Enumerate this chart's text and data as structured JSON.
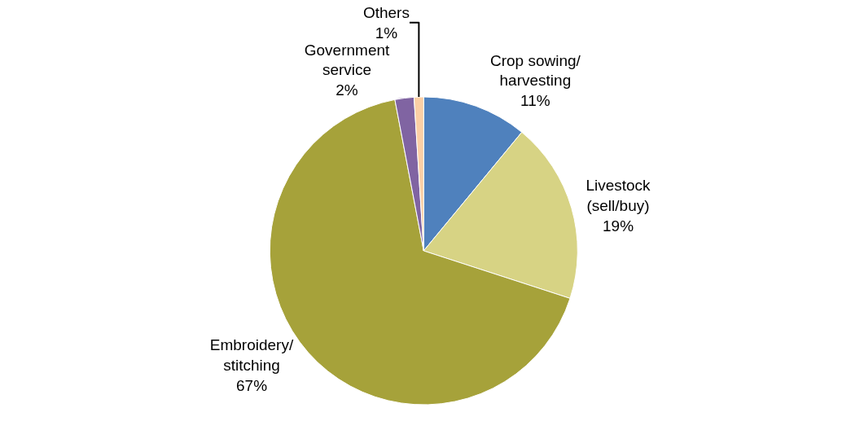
{
  "chart_data": {
    "type": "pie",
    "categories": [
      "Crop sowing/\nharvesting",
      "Livestock\n(sell/buy)",
      "Embroidery/\nstitching",
      "Government\nservice",
      "Others"
    ],
    "values": [
      11,
      19,
      67,
      2,
      1
    ],
    "value_labels": [
      "11%",
      "19%",
      "67%",
      "2%",
      "1%"
    ],
    "colors": [
      "#4f81bd",
      "#d7d384",
      "#a6a23a",
      "#8064a2",
      "#fbcfa5"
    ],
    "legend": false
  }
}
